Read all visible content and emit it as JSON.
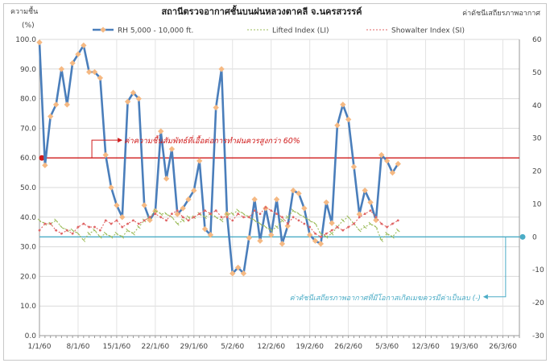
{
  "chart_data": {
    "type": "line",
    "title": "สถานีตรวจอากาศชั้นบนฝนหลวงตาคลี  จ.นครสวรรค์",
    "left_axis_title": "ความชื้น",
    "left_axis_unit": "(%)",
    "right_axis_title": "ค่าดัชนีเสถียรภาพอากาศ",
    "y_left_lim": [
      0,
      100
    ],
    "y_left_ticks": [
      "0.0",
      "10.0",
      "20.0",
      "30.0",
      "40.0",
      "50.0",
      "60.0",
      "70.0",
      "80.0",
      "90.0",
      "100.0"
    ],
    "y_right_lim": [
      -30,
      60
    ],
    "y_right_ticks": [
      "-30",
      "-20",
      "-10",
      "0",
      "10",
      "20",
      "30",
      "40",
      "50",
      "60"
    ],
    "x_ticks": [
      "1/1/60",
      "8/1/60",
      "15/1/60",
      "22/1/60",
      "29/1/60",
      "5/2/60",
      "12/2/60",
      "19/2/60",
      "26/2/60",
      "5/3/60",
      "12/3/60",
      "19/3/60",
      "26/3/60"
    ],
    "x_range_days": [
      0,
      87
    ],
    "grid": true,
    "legend_position": "top",
    "series": [
      {
        "name": "RH 5,000 - 10,000 ft.",
        "axis": "left",
        "color": "#4a7ebb",
        "marker_color": "#f5b983",
        "x": [
          0,
          1,
          2,
          3,
          4,
          5,
          6,
          7,
          8,
          9,
          10,
          11,
          12,
          13,
          14,
          15,
          16,
          17,
          18,
          19,
          20,
          21,
          22,
          23,
          24,
          25,
          26,
          27,
          28,
          29,
          30,
          31,
          32,
          33,
          34,
          35,
          36,
          37,
          38,
          39,
          40,
          41,
          42,
          43,
          44,
          45,
          46,
          47,
          48,
          49,
          50,
          51,
          52,
          53,
          54,
          55,
          56,
          57,
          58,
          59,
          60,
          61,
          62,
          63,
          64,
          65
        ],
        "values": [
          99,
          57.5,
          74,
          78,
          90,
          78,
          92,
          95,
          98,
          89,
          89,
          87,
          61,
          50,
          44,
          40,
          79,
          82,
          80,
          44,
          39,
          42,
          69,
          53,
          63,
          41,
          43,
          46,
          49,
          59,
          36,
          34,
          77,
          90,
          41,
          21,
          23,
          21,
          33,
          46,
          32,
          43,
          34,
          46,
          31,
          37,
          49,
          48,
          43,
          34,
          32,
          31,
          45,
          38,
          71,
          78,
          73,
          57,
          41,
          49,
          45,
          39,
          61,
          59,
          55,
          58
        ]
      },
      {
        "name": "Lifted Index (LI)",
        "axis": "right",
        "color": "#9bbb59",
        "dash": "2,2",
        "x": [
          0,
          1,
          2,
          3,
          4,
          5,
          6,
          7,
          8,
          9,
          10,
          11,
          12,
          13,
          14,
          15,
          16,
          17,
          18,
          19,
          20,
          21,
          22,
          23,
          24,
          25,
          26,
          27,
          28,
          29,
          30,
          31,
          32,
          33,
          34,
          35,
          36,
          37,
          38,
          39,
          40,
          41,
          42,
          43,
          44,
          45,
          46,
          47,
          48,
          49,
          50,
          51,
          52,
          53,
          54,
          55,
          56,
          57,
          58,
          59,
          60,
          61,
          62,
          63,
          64,
          65
        ],
        "values": [
          5,
          4,
          4,
          5,
          3,
          2,
          2,
          1,
          -1,
          1,
          2,
          0,
          1,
          0,
          1,
          0,
          2,
          1,
          3,
          5,
          6,
          8,
          7,
          7,
          6,
          4,
          5,
          6,
          6,
          7,
          6,
          7,
          6,
          5,
          7,
          7,
          8,
          7,
          6,
          5,
          4,
          3,
          2,
          3,
          5,
          6,
          8,
          7,
          6,
          5,
          4,
          1,
          0,
          1,
          3,
          5,
          6,
          4,
          2,
          3,
          4,
          3,
          -1,
          1,
          0,
          2
        ]
      },
      {
        "name": "Showalter Index (SI)",
        "axis": "right",
        "color": "#e06666",
        "dash": "2,2",
        "x": [
          0,
          1,
          2,
          3,
          4,
          5,
          6,
          7,
          8,
          9,
          10,
          11,
          12,
          13,
          14,
          15,
          16,
          17,
          18,
          19,
          20,
          21,
          22,
          23,
          24,
          25,
          26,
          27,
          28,
          29,
          30,
          31,
          32,
          33,
          34,
          35,
          36,
          37,
          38,
          39,
          40,
          41,
          42,
          43,
          44,
          45,
          46,
          47,
          48,
          49,
          50,
          51,
          52,
          53,
          54,
          55,
          56,
          57,
          58,
          59,
          60,
          61,
          62,
          63,
          64,
          65
        ],
        "values": [
          2,
          4,
          4,
          2,
          1,
          2,
          1,
          3,
          4,
          3,
          3,
          2,
          5,
          4,
          5,
          3,
          4,
          5,
          4,
          5,
          6,
          7,
          6,
          5,
          7,
          8,
          6,
          5,
          6,
          7,
          8,
          7,
          8,
          6,
          6,
          5,
          7,
          6,
          6,
          8,
          7,
          9,
          8,
          7,
          6,
          4,
          6,
          5,
          4,
          3,
          1,
          0,
          1,
          2,
          3,
          2,
          3,
          4,
          6,
          7,
          8,
          6,
          4,
          3,
          4,
          5
        ]
      }
    ],
    "annotations": [
      {
        "text": "ค่าความชื้นสัมพัทธ์ที่เอื้อต่อการทำฝนควรสูงกว่า 60%",
        "axis": "left",
        "threshold": 60,
        "color": "#d01c1c"
      },
      {
        "text": "ค่าดัชนีเสถียรภาพอากาศที่มีโอกาสเกิดเมฆควรมีค่าเป็นลบ (-)",
        "axis": "right",
        "threshold": 0,
        "color": "#4bacc6"
      }
    ]
  }
}
